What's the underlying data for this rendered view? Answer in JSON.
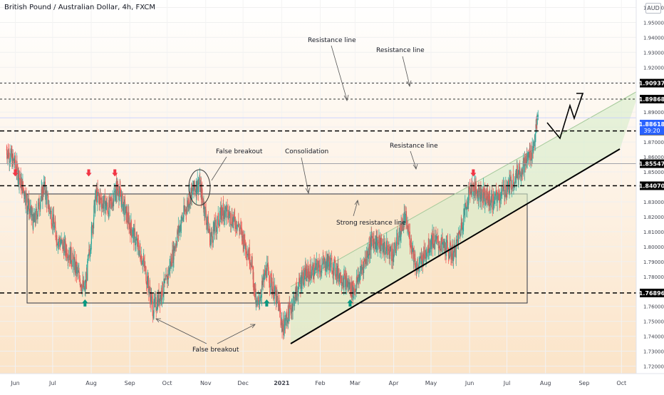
{
  "header": {
    "title": "British Pound / Australian Dollar, 4h, FXCM",
    "currency": "AUD"
  },
  "price_axis": {
    "ticks": [
      "1.96000",
      "1.95000",
      "1.94000",
      "1.93000",
      "1.92000",
      "1.91000",
      "1.89000",
      "1.88000",
      "1.87000",
      "1.86000",
      "1.85000",
      "1.83000",
      "1.82000",
      "1.81000",
      "1.80000",
      "1.79000",
      "1.78000",
      "1.76000",
      "1.75000",
      "1.74000",
      "1.73000",
      "1.72000"
    ],
    "current_price": "1.88618",
    "countdown": "39:20"
  },
  "time_axis": {
    "labels": [
      "Jun",
      "Jul",
      "Aug",
      "Sep",
      "Oct",
      "Nov",
      "Dec",
      "2021",
      "Feb",
      "Mar",
      "Apr",
      "May",
      "Jun",
      "Jul",
      "Aug",
      "Sep",
      "Oct"
    ]
  },
  "levels": [
    {
      "label": "1.90937",
      "value": 1.90937
    },
    {
      "label": "1.89868",
      "value": 1.89868
    },
    {
      "label": "1.87742",
      "value": 1.87742
    },
    {
      "label": "1.85547",
      "value": 1.85547
    },
    {
      "label": "1.84070",
      "value": 1.8407
    },
    {
      "label": "1.76896",
      "value": 1.76896
    }
  ],
  "annotations": {
    "resistance_1": "Resistance line",
    "resistance_2": "Resistance line",
    "resistance_3": "Resistance line",
    "false_breakout_top": "False breakout",
    "consolidation": "Consolidation",
    "strong_resistance": "Strong resistance line",
    "false_breakout_bottom": "False breakout"
  },
  "colors": {
    "bull": "#26a69a",
    "bear": "#ef5350",
    "up_arrow": "#089981",
    "down_arrow": "#f23645",
    "range_fill": "#fbe2c2",
    "channel_fill": "#d6ecc9",
    "price_tag": "#2962ff"
  },
  "chart_data": {
    "type": "candlestick",
    "symbol": "GBPAUD",
    "interval": "4h",
    "y_range": [
      1.715,
      1.965
    ],
    "trend": [
      [
        "2020-05-25",
        1.865
      ],
      [
        "2020-06-01",
        1.855
      ],
      [
        "2020-06-10",
        1.832
      ],
      [
        "2020-06-16",
        1.815
      ],
      [
        "2020-06-24",
        1.84
      ],
      [
        "2020-07-05",
        1.805
      ],
      [
        "2020-07-15",
        1.795
      ],
      [
        "2020-07-27",
        1.77
      ],
      [
        "2020-08-05",
        1.835
      ],
      [
        "2020-08-15",
        1.825
      ],
      [
        "2020-08-22",
        1.84
      ],
      [
        "2020-09-01",
        1.815
      ],
      [
        "2020-09-12",
        1.79
      ],
      [
        "2020-09-20",
        1.758
      ],
      [
        "2020-09-30",
        1.775
      ],
      [
        "2020-10-10",
        1.81
      ],
      [
        "2020-10-20",
        1.835
      ],
      [
        "2020-10-27",
        1.843
      ],
      [
        "2020-11-05",
        1.805
      ],
      [
        "2020-11-15",
        1.825
      ],
      [
        "2020-11-27",
        1.815
      ],
      [
        "2020-12-08",
        1.79
      ],
      [
        "2020-12-12",
        1.758
      ],
      [
        "2020-12-20",
        1.785
      ],
      [
        "2020-12-30",
        1.76
      ],
      [
        "2021-01-02",
        1.745
      ],
      [
        "2021-01-18",
        1.78
      ],
      [
        "2021-02-08",
        1.79
      ],
      [
        "2021-02-28",
        1.77
      ],
      [
        "2021-03-15",
        1.805
      ],
      [
        "2021-04-01",
        1.795
      ],
      [
        "2021-04-10",
        1.82
      ],
      [
        "2021-04-20",
        1.785
      ],
      [
        "2021-05-02",
        1.805
      ],
      [
        "2021-05-20",
        1.795
      ],
      [
        "2021-06-02",
        1.84
      ],
      [
        "2021-06-20",
        1.83
      ],
      [
        "2021-07-02",
        1.84
      ],
      [
        "2021-07-15",
        1.855
      ],
      [
        "2021-07-22",
        1.865
      ],
      [
        "2021-07-26",
        1.886
      ]
    ],
    "horizontal_levels": [
      1.90937,
      1.89868,
      1.87742,
      1.85547,
      1.8407,
      1.76896
    ],
    "consolidation_range": {
      "top": 1.8407,
      "bottom": 1.76896,
      "start": "2020-06-01",
      "end": "2021-07-18"
    },
    "signals": {
      "sell": [
        "2020-06-01",
        "2020-07-30",
        "2020-08-20",
        "2021-06-04"
      ],
      "buy": [
        "2020-07-27",
        "2020-12-20",
        "2021-02-25"
      ]
    },
    "projection": [
      [
        "2021-07-26",
        1.886
      ],
      [
        "2021-08-05",
        1.87742
      ],
      [
        "2021-08-15",
        1.8987
      ],
      [
        "2021-08-22",
        1.89
      ],
      [
        "2021-09-01",
        1.9095
      ]
    ]
  }
}
